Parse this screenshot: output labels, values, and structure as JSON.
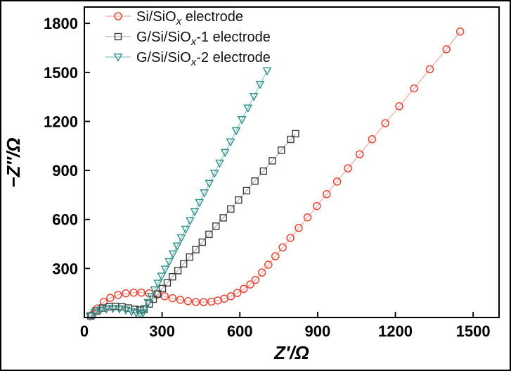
{
  "figure": {
    "background": "#ffffff",
    "frame_color": "#000000"
  },
  "chart_data": {
    "type": "scatter",
    "title": "",
    "xlabel": "Z′/Ω",
    "ylabel": "−Z″/Ω",
    "xlim": [
      0,
      1600
    ],
    "ylim": [
      0,
      1900
    ],
    "xticks": [
      0,
      300,
      600,
      900,
      1200,
      1500
    ],
    "yticks": [
      300,
      600,
      900,
      1200,
      1500,
      1800
    ],
    "grid": false,
    "legend_position": "top-left",
    "series": [
      {
        "label": {
          "pre": "Si/SiO",
          "sub": "x",
          "post": " electrode"
        },
        "marker": "circle",
        "color": "#e64535",
        "line_color": "#f5a8a3",
        "points": [
          [
            30,
            15
          ],
          [
            50,
            55
          ],
          [
            75,
            95
          ],
          [
            100,
            120
          ],
          [
            130,
            138
          ],
          [
            160,
            148
          ],
          [
            190,
            152
          ],
          [
            220,
            152
          ],
          [
            250,
            148
          ],
          [
            280,
            140
          ],
          [
            310,
            130
          ],
          [
            340,
            118
          ],
          [
            370,
            108
          ],
          [
            400,
            100
          ],
          [
            430,
            95
          ],
          [
            460,
            94
          ],
          [
            490,
            97
          ],
          [
            515,
            104
          ],
          [
            540,
            115
          ],
          [
            565,
            130
          ],
          [
            590,
            150
          ],
          [
            615,
            175
          ],
          [
            640,
            202
          ],
          [
            660,
            230
          ],
          [
            685,
            275
          ],
          [
            710,
            323
          ],
          [
            737,
            375
          ],
          [
            765,
            429
          ],
          [
            795,
            487
          ],
          [
            827,
            548
          ],
          [
            861,
            613
          ],
          [
            897,
            682
          ],
          [
            935,
            755
          ],
          [
            975,
            832
          ],
          [
            1017,
            913
          ],
          [
            1062,
            999
          ],
          [
            1110,
            1091
          ],
          [
            1161,
            1189
          ],
          [
            1215,
            1293
          ],
          [
            1272,
            1402
          ],
          [
            1333,
            1519
          ],
          [
            1397,
            1642
          ],
          [
            1450,
            1750
          ]
        ]
      },
      {
        "label": {
          "pre": "G/Si/SiO",
          "sub": "x",
          "post": "-1 electrode"
        },
        "marker": "square",
        "color": "#3c3c3c",
        "line_color": "#b0b0b0",
        "points": [
          [
            25,
            10
          ],
          [
            45,
            40
          ],
          [
            70,
            58
          ],
          [
            95,
            66
          ],
          [
            120,
            68
          ],
          [
            145,
            65
          ],
          [
            170,
            58
          ],
          [
            195,
            50
          ],
          [
            215,
            45
          ],
          [
            230,
            50
          ],
          [
            250,
            83
          ],
          [
            266,
            112
          ],
          [
            283,
            144
          ],
          [
            301,
            177
          ],
          [
            320,
            212
          ],
          [
            340,
            249
          ],
          [
            361,
            287
          ],
          [
            383,
            328
          ],
          [
            406,
            370
          ],
          [
            430,
            415
          ],
          [
            455,
            461
          ],
          [
            481,
            509
          ],
          [
            508,
            559
          ],
          [
            536,
            610
          ],
          [
            565,
            664
          ],
          [
            595,
            719
          ],
          [
            626,
            776
          ],
          [
            658,
            835
          ],
          [
            691,
            896
          ],
          [
            725,
            959
          ],
          [
            760,
            1024
          ],
          [
            796,
            1090
          ],
          [
            815,
            1125
          ]
        ]
      },
      {
        "label": {
          "pre": "G/Si/SiO",
          "sub": "x",
          "post": "-2 electrode"
        },
        "marker": "triangle-down",
        "color": "#2f8e89",
        "line_color": "#86c7c1",
        "points": [
          [
            22,
            8
          ],
          [
            40,
            30
          ],
          [
            62,
            45
          ],
          [
            85,
            53
          ],
          [
            110,
            56
          ],
          [
            135,
            53
          ],
          [
            160,
            46
          ],
          [
            182,
            36
          ],
          [
            200,
            27
          ],
          [
            214,
            22
          ],
          [
            226,
            28
          ],
          [
            234,
            55
          ],
          [
            246,
            92
          ],
          [
            258,
            129
          ],
          [
            271,
            169
          ],
          [
            284,
            210
          ],
          [
            298,
            253
          ],
          [
            312,
            296
          ],
          [
            327,
            342
          ],
          [
            342,
            389
          ],
          [
            358,
            438
          ],
          [
            374,
            488
          ],
          [
            391,
            540
          ],
          [
            408,
            593
          ],
          [
            426,
            648
          ],
          [
            444,
            704
          ],
          [
            463,
            763
          ],
          [
            482,
            821
          ],
          [
            502,
            883
          ],
          [
            522,
            945
          ],
          [
            543,
            1010
          ],
          [
            564,
            1075
          ],
          [
            586,
            1143
          ],
          [
            608,
            1211
          ],
          [
            631,
            1282
          ],
          [
            654,
            1353
          ],
          [
            678,
            1427
          ],
          [
            705,
            1510
          ]
        ]
      }
    ]
  }
}
